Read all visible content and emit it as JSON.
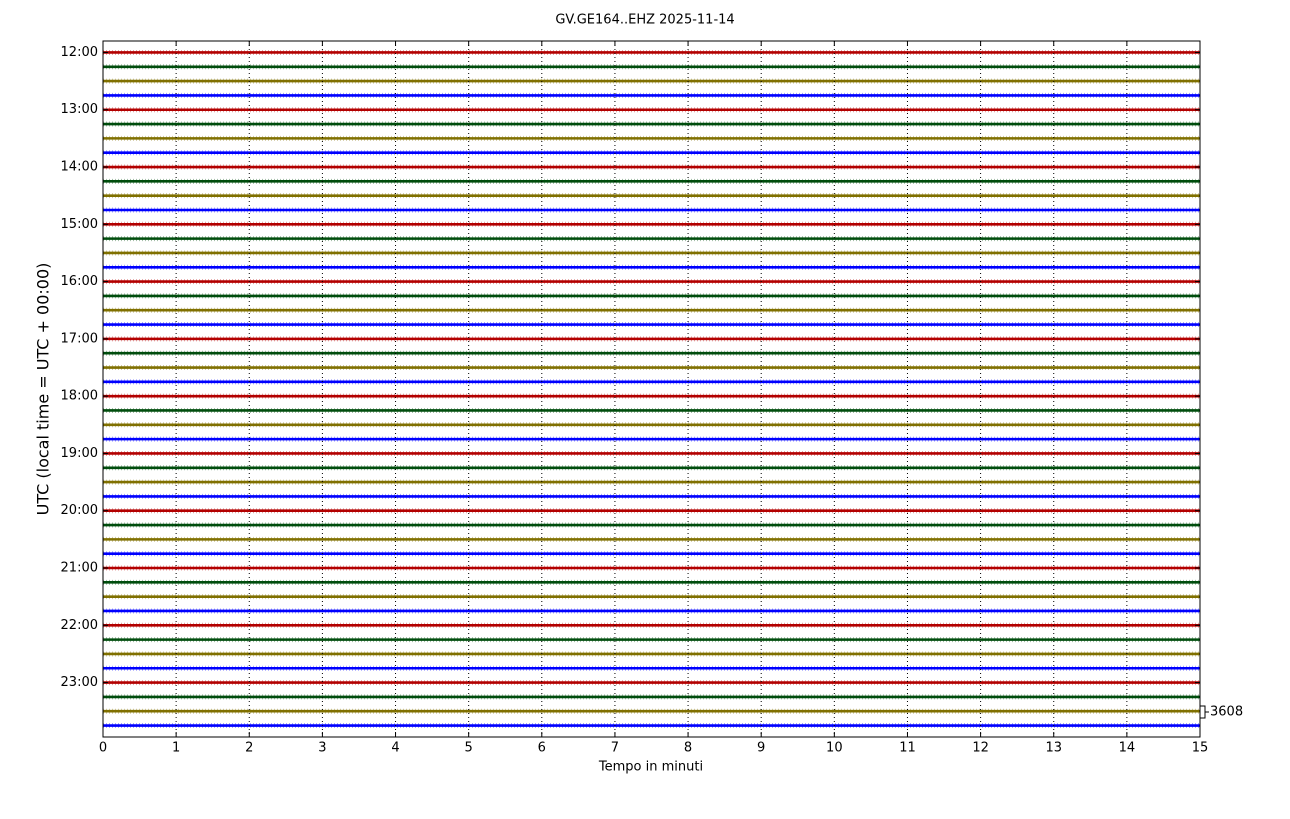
{
  "chart_data": {
    "type": "helicorder",
    "title": "GV.GE164..EHZ 2025-11-14",
    "x_label": "Tempo in minuti",
    "y_label": "UTC (local time = UTC + 00:00)",
    "xlim": [
      0,
      15
    ],
    "xticks": [
      0,
      1,
      2,
      3,
      4,
      5,
      6,
      7,
      8,
      9,
      10,
      11,
      12,
      13,
      14,
      15
    ],
    "ylim": [
      11.8,
      23.95
    ],
    "yticks": [
      {
        "value": 12,
        "label": "12:00"
      },
      {
        "value": 13,
        "label": "13:00"
      },
      {
        "value": 14,
        "label": "14:00"
      },
      {
        "value": 15,
        "label": "15:00"
      },
      {
        "value": 16,
        "label": "16:00"
      },
      {
        "value": 17,
        "label": "17:00"
      },
      {
        "value": 18,
        "label": "18:00"
      },
      {
        "value": 19,
        "label": "19:00"
      },
      {
        "value": 20,
        "label": "20:00"
      },
      {
        "value": 21,
        "label": "21:00"
      },
      {
        "value": 22,
        "label": "22:00"
      },
      {
        "value": 23,
        "label": "23:00"
      }
    ],
    "trace_colors": [
      "#b30000",
      "#004d0d",
      "#807000",
      "#0000ff"
    ],
    "scale_label": 3608,
    "grid": true
  }
}
